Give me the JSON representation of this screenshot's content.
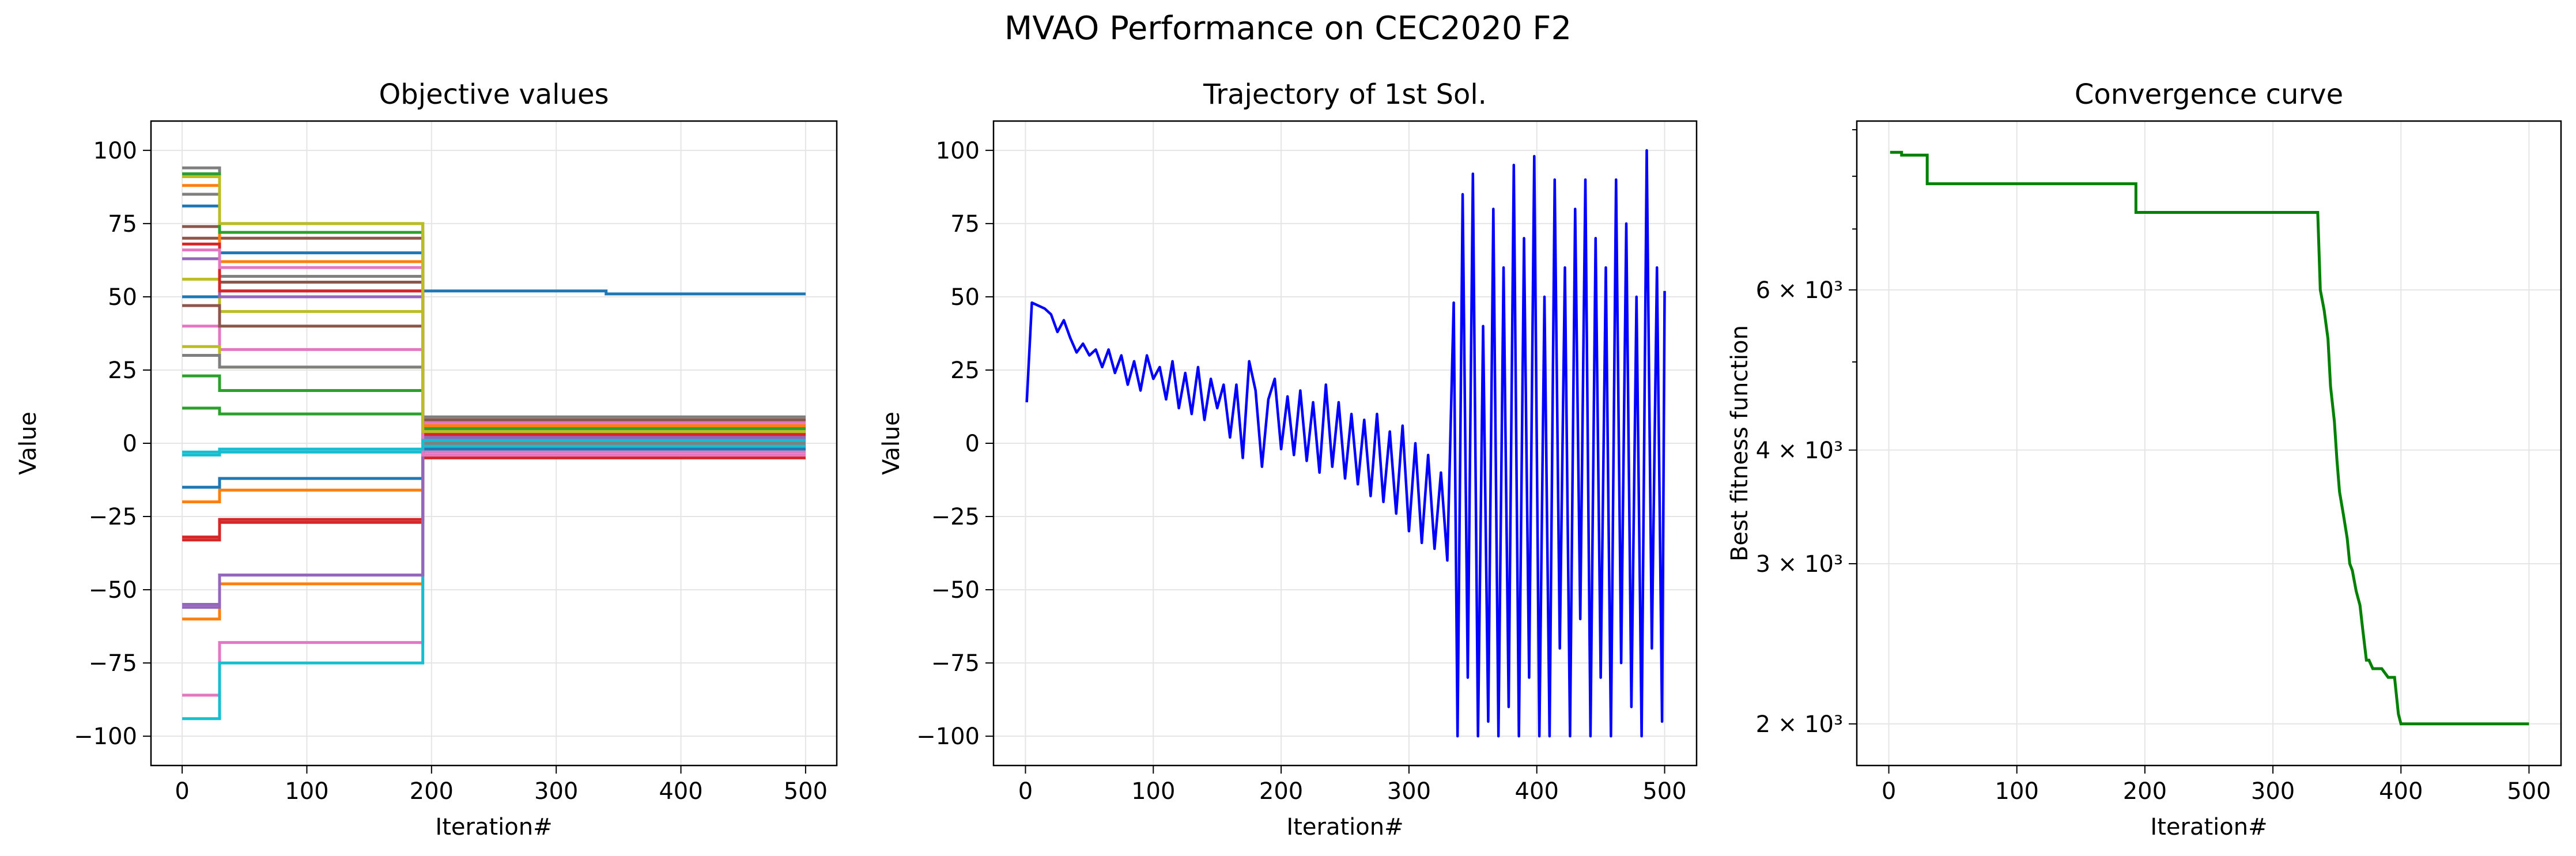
{
  "figure": {
    "title": "MVAO Performance on CEC2020 F2"
  },
  "colors": {
    "tab10": [
      "#1f77b4",
      "#ff7f0e",
      "#2ca02c",
      "#d62728",
      "#9467bd",
      "#8c564b",
      "#e377c2",
      "#7f7f7f",
      "#bcbd22",
      "#17becf"
    ],
    "trajectory": "#0000ff",
    "convergence": "#008000",
    "grid": "#e5e5e5"
  },
  "chart_data": [
    {
      "type": "line",
      "title": "Objective values",
      "xlabel": "Iteration#",
      "ylabel": "Value",
      "xlim": [
        -25,
        525
      ],
      "ylim": [
        -110,
        110
      ],
      "xticks": [
        0,
        100,
        200,
        300,
        400,
        500
      ],
      "yticks": [
        -100,
        -75,
        -50,
        -25,
        0,
        25,
        50,
        75,
        100
      ],
      "grid": true,
      "description_of_series": "30 population members (tab10 color cycle); piecewise-constant levels changing at iterations 30 and 193",
      "series": [
        {
          "levels": [
            [
              0,
              50
            ],
            [
              30,
              52
            ],
            [
              193,
              52
            ],
            [
              340,
              51
            ],
            [
              500,
              51
            ]
          ]
        },
        {
          "levels": [
            [
              0,
              -60
            ],
            [
              30,
              -48
            ],
            [
              193,
              -2
            ],
            [
              500,
              -2
            ]
          ]
        },
        {
          "levels": [
            [
              0,
              12
            ],
            [
              30,
              10
            ],
            [
              193,
              2
            ],
            [
              500,
              2
            ]
          ]
        },
        {
          "levels": [
            [
              0,
              -33
            ],
            [
              30,
              -27
            ],
            [
              193,
              -5
            ],
            [
              500,
              -5
            ]
          ]
        },
        {
          "levels": [
            [
              0,
              -56
            ],
            [
              30,
              -45
            ],
            [
              193,
              1
            ],
            [
              500,
              1
            ]
          ]
        },
        {
          "levels": [
            [
              0,
              74
            ],
            [
              30,
              70
            ],
            [
              193,
              -1
            ],
            [
              500,
              -1
            ]
          ]
        },
        {
          "levels": [
            [
              0,
              -86
            ],
            [
              30,
              -68
            ],
            [
              193,
              -3
            ],
            [
              500,
              -3
            ]
          ]
        },
        {
          "levels": [
            [
              0,
              94
            ],
            [
              30,
              75
            ],
            [
              193,
              3
            ],
            [
              500,
              3
            ]
          ]
        },
        {
          "levels": [
            [
              0,
              56
            ],
            [
              30,
              45
            ],
            [
              193,
              0
            ],
            [
              500,
              0
            ]
          ]
        },
        {
          "levels": [
            [
              0,
              -94
            ],
            [
              30,
              -75
            ],
            [
              193,
              -1
            ],
            [
              500,
              -1
            ]
          ]
        },
        {
          "levels": [
            [
              0,
              81
            ],
            [
              30,
              65
            ],
            [
              193,
              4
            ],
            [
              500,
              4
            ]
          ]
        },
        {
          "levels": [
            [
              0,
              -20
            ],
            [
              30,
              -16
            ],
            [
              193,
              1
            ],
            [
              500,
              1
            ]
          ]
        },
        {
          "levels": [
            [
              0,
              23
            ],
            [
              30,
              18
            ],
            [
              193,
              5
            ],
            [
              500,
              5
            ]
          ]
        },
        {
          "levels": [
            [
              0,
              -32
            ],
            [
              30,
              -26
            ],
            [
              193,
              2
            ],
            [
              500,
              2
            ]
          ]
        },
        {
          "levels": [
            [
              0,
              63
            ],
            [
              30,
              50
            ],
            [
              193,
              6
            ],
            [
              500,
              6
            ]
          ]
        },
        {
          "levels": [
            [
              0,
              70
            ],
            [
              30,
              55
            ],
            [
              193,
              3
            ],
            [
              500,
              3
            ]
          ]
        },
        {
          "levels": [
            [
              0,
              40
            ],
            [
              30,
              32
            ],
            [
              193,
              7
            ],
            [
              500,
              7
            ]
          ]
        },
        {
          "levels": [
            [
              0,
              85
            ],
            [
              30,
              57
            ],
            [
              193,
              0
            ],
            [
              500,
              0
            ]
          ]
        },
        {
          "levels": [
            [
              0,
              33
            ],
            [
              30,
              26
            ],
            [
              193,
              8
            ],
            [
              500,
              8
            ]
          ]
        },
        {
          "levels": [
            [
              0,
              -4
            ],
            [
              30,
              -3
            ],
            [
              193,
              4
            ],
            [
              500,
              4
            ]
          ]
        },
        {
          "levels": [
            [
              0,
              -15
            ],
            [
              30,
              -12
            ],
            [
              193,
              -2
            ],
            [
              500,
              -2
            ]
          ]
        },
        {
          "levels": [
            [
              0,
              88
            ],
            [
              30,
              62
            ],
            [
              193,
              6
            ],
            [
              500,
              6
            ]
          ]
        },
        {
          "levels": [
            [
              0,
              92
            ],
            [
              30,
              72
            ],
            [
              193,
              5
            ],
            [
              500,
              5
            ]
          ]
        },
        {
          "levels": [
            [
              0,
              68
            ],
            [
              30,
              52
            ],
            [
              193,
              3
            ],
            [
              500,
              3
            ]
          ]
        },
        {
          "levels": [
            [
              0,
              -55
            ],
            [
              30,
              -45
            ],
            [
              193,
              2
            ],
            [
              500,
              2
            ]
          ]
        },
        {
          "levels": [
            [
              0,
              47
            ],
            [
              30,
              40
            ],
            [
              193,
              8
            ],
            [
              500,
              8
            ]
          ]
        },
        {
          "levels": [
            [
              0,
              66
            ],
            [
              30,
              60
            ],
            [
              193,
              -4
            ],
            [
              500,
              -4
            ]
          ]
        },
        {
          "levels": [
            [
              0,
              30
            ],
            [
              30,
              26
            ],
            [
              193,
              9
            ],
            [
              500,
              9
            ]
          ]
        },
        {
          "levels": [
            [
              0,
              91
            ],
            [
              30,
              75
            ],
            [
              193,
              4
            ],
            [
              500,
              4
            ]
          ]
        },
        {
          "levels": [
            [
              0,
              -3
            ],
            [
              30,
              -2
            ],
            [
              193,
              1
            ],
            [
              500,
              1
            ]
          ]
        }
      ]
    },
    {
      "type": "line",
      "title": "Trajectory of 1st Sol.",
      "xlabel": "Iteration#",
      "ylabel": "Value",
      "xlim": [
        -25,
        525
      ],
      "ylim": [
        -110,
        110
      ],
      "xticks": [
        0,
        100,
        200,
        300,
        400,
        500
      ],
      "yticks": [
        -100,
        -75,
        -50,
        -25,
        0,
        25,
        50,
        75,
        100
      ],
      "grid": true,
      "series": [
        {
          "x": [
            1,
            5,
            10,
            15,
            20,
            25,
            30,
            35,
            40,
            45,
            50,
            55,
            60,
            65,
            70,
            75,
            80,
            85,
            90,
            95,
            100,
            105,
            110,
            115,
            120,
            125,
            130,
            135,
            140,
            145,
            150,
            155,
            160,
            165,
            170,
            175,
            180,
            185,
            190,
            195,
            200,
            205,
            210,
            215,
            220,
            225,
            230,
            235,
            240,
            245,
            250,
            255,
            260,
            265,
            270,
            275,
            280,
            285,
            290,
            295,
            300,
            305,
            310,
            315,
            320,
            325,
            330,
            335,
            338,
            342,
            346,
            350,
            354,
            358,
            362,
            366,
            370,
            374,
            378,
            382,
            386,
            390,
            394,
            398,
            402,
            406,
            410,
            414,
            418,
            422,
            426,
            430,
            434,
            438,
            442,
            446,
            450,
            454,
            458,
            462,
            466,
            470,
            474,
            478,
            482,
            486,
            490,
            494,
            498,
            500
          ],
          "y": [
            14,
            48,
            47,
            46,
            44,
            38,
            42,
            36,
            31,
            34,
            30,
            32,
            26,
            32,
            24,
            30,
            20,
            28,
            18,
            30,
            22,
            26,
            15,
            28,
            12,
            24,
            10,
            26,
            8,
            22,
            12,
            20,
            2,
            20,
            -5,
            28,
            18,
            -8,
            15,
            22,
            -2,
            16,
            -4,
            18,
            -6,
            14,
            -10,
            20,
            -8,
            14,
            -12,
            10,
            -14,
            8,
            -18,
            10,
            -20,
            4,
            -24,
            6,
            -30,
            0,
            -34,
            -4,
            -36,
            -10,
            -40,
            48,
            -100,
            85,
            -80,
            92,
            -100,
            40,
            -95,
            80,
            -100,
            60,
            -90,
            95,
            -100,
            70,
            -80,
            98,
            -100,
            50,
            -100,
            90,
            -70,
            60,
            -100,
            80,
            -60,
            90,
            -100,
            70,
            -80,
            60,
            -100,
            90,
            -75,
            75,
            -90,
            50,
            -100,
            100,
            -70,
            60,
            -95,
            52
          ]
        }
      ]
    },
    {
      "type": "line",
      "title": "Convergence curve",
      "xlabel": "Iteration#",
      "ylabel": "Best fitness function",
      "xlim": [
        -25,
        525
      ],
      "yscale": "log",
      "ylim": [
        1800,
        9200
      ],
      "xticks": [
        0,
        100,
        200,
        300,
        400,
        500
      ],
      "yticks_major": [
        2000,
        3000,
        4000,
        6000
      ],
      "ytick_labels": [
        "2 × 10³",
        "3 × 10³",
        "4 × 10³",
        "6 × 10³"
      ],
      "grid": true,
      "series": [
        {
          "x": [
            1,
            10,
            10,
            30,
            30,
            193,
            193,
            335,
            337,
            340,
            343,
            345,
            348,
            350,
            352,
            355,
            358,
            360,
            362,
            365,
            368,
            370,
            373,
            375,
            378,
            380,
            385,
            390,
            395,
            398,
            400,
            405,
            420,
            500
          ],
          "y": [
            8500,
            8500,
            8440,
            8440,
            7850,
            7850,
            7300,
            7300,
            6000,
            5700,
            5300,
            4700,
            4300,
            3900,
            3600,
            3400,
            3200,
            3000,
            2950,
            2800,
            2700,
            2550,
            2350,
            2350,
            2300,
            2300,
            2300,
            2250,
            2250,
            2050,
            2000,
            2000,
            2000,
            2000
          ]
        }
      ]
    }
  ]
}
